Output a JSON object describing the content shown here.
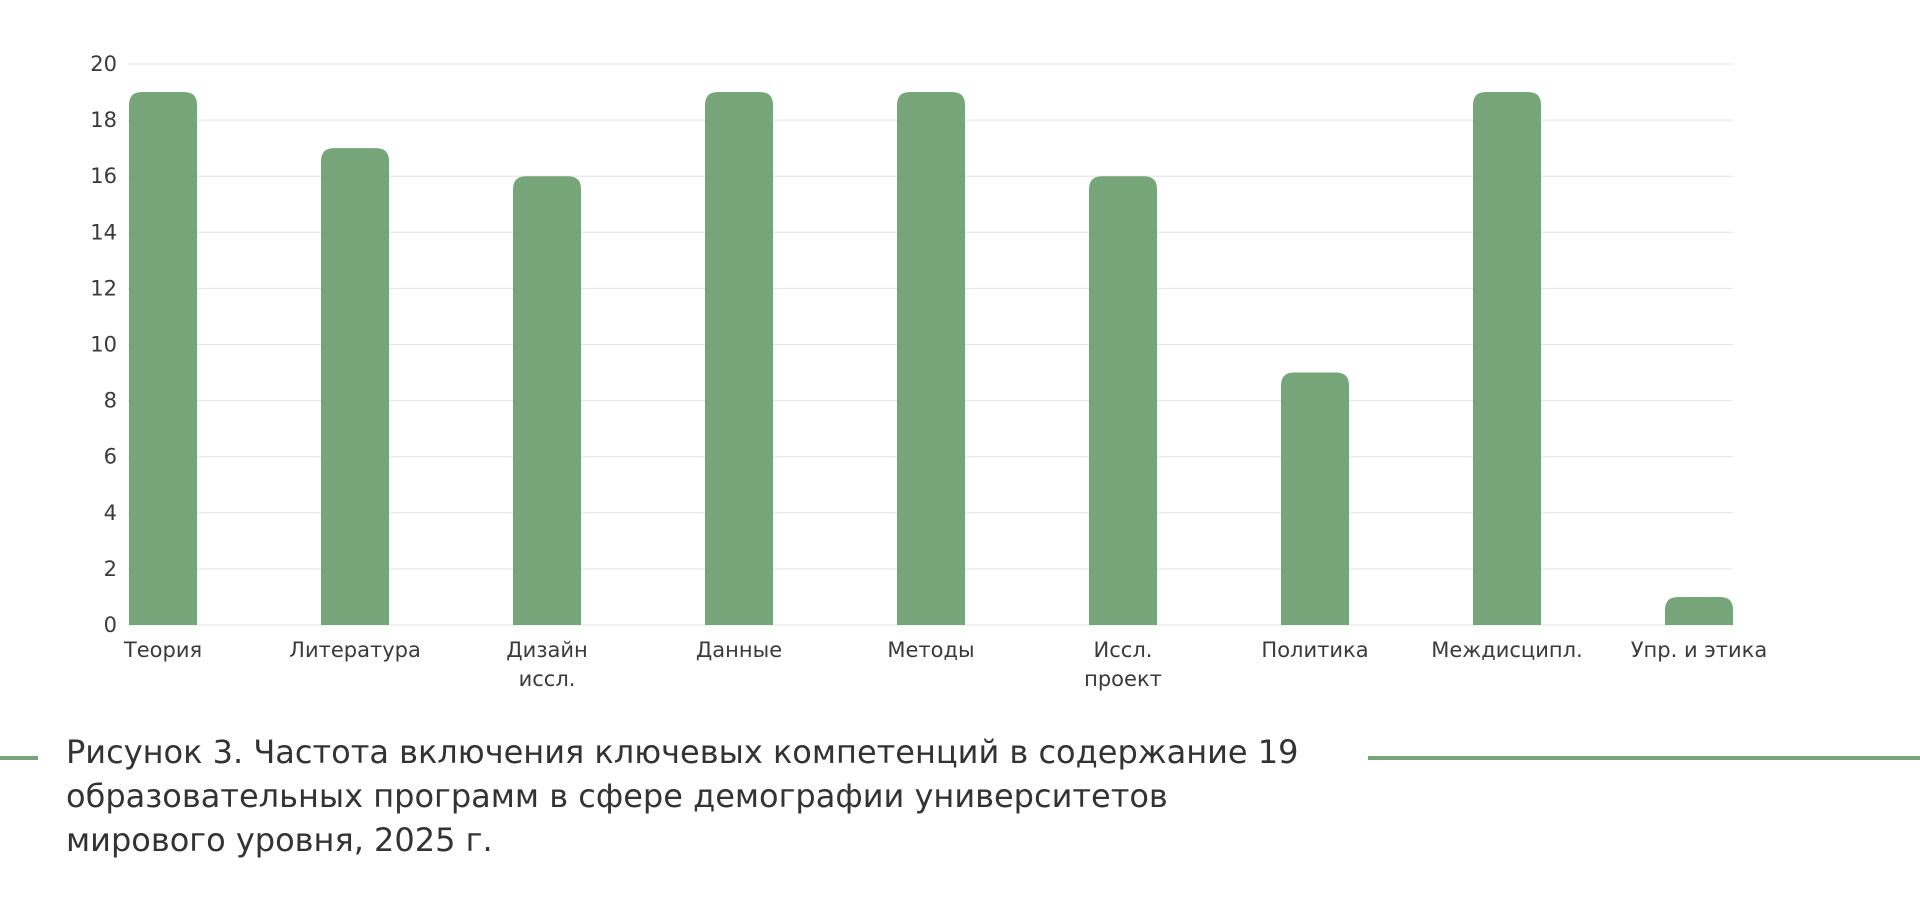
{
  "caption": {
    "text": "Рисунок 3. Частота включения ключевых компетенций в содержание 19 образовательных программ в сфере демографии университетов мирового уровня, 2025 г."
  },
  "colors": {
    "bar": "#76a57a",
    "accent_line": "#76a57a",
    "grid": "#e4e4e4",
    "text": "#3a3a3a"
  },
  "chart_data": {
    "type": "bar",
    "title": "",
    "xlabel": "",
    "ylabel": "",
    "categories": [
      [
        "Теория"
      ],
      [
        "Литература"
      ],
      [
        "Дизайн",
        "иссл."
      ],
      [
        "Данные"
      ],
      [
        "Методы"
      ],
      [
        "Иссл.",
        "проект"
      ],
      [
        "Политика"
      ],
      [
        "Междисципл."
      ],
      [
        "Упр. и этика"
      ]
    ],
    "values": [
      19,
      17,
      16,
      19,
      19,
      16,
      9,
      19,
      1
    ],
    "ylim": [
      0,
      20
    ],
    "yticks": [
      0,
      2,
      4,
      6,
      8,
      10,
      12,
      14,
      16,
      18,
      20
    ],
    "grid": true,
    "legend": "none"
  }
}
